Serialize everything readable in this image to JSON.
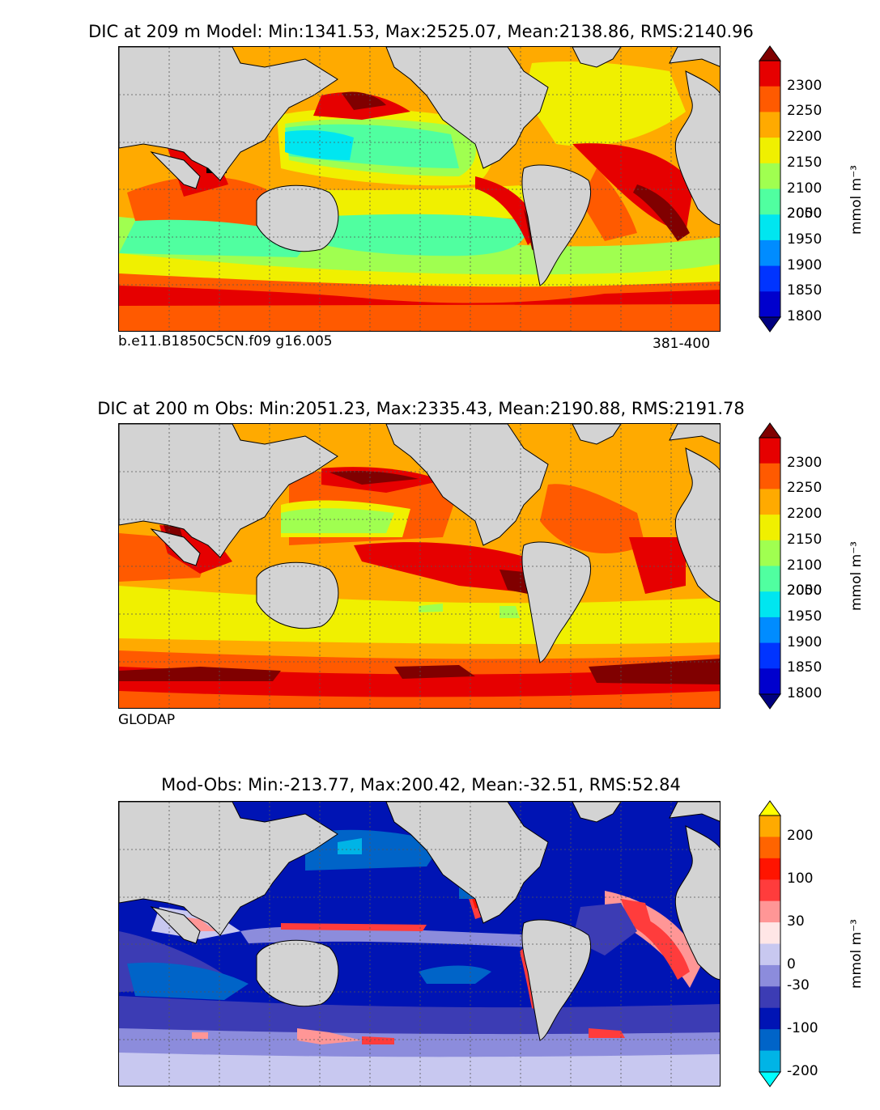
{
  "panels": [
    {
      "title": "DIC at 209 m Model: Min:1341.53, Max:2525.07, Mean:2138.86, RMS:2140.96",
      "left_note": "b.e11.B1850C5CN.f09 g16.005",
      "right_note": "381-400",
      "unit": "mmol m⁻³",
      "colors": [
        "#000080",
        "#0000cd",
        "#0034ff",
        "#008cff",
        "#00e6f0",
        "#50ffa0",
        "#a0ff50",
        "#f0f000",
        "#ffaa00",
        "#ff5a00",
        "#e60000",
        "#800000"
      ],
      "ticks": [
        "2300",
        "2250",
        "2200",
        "2150",
        "2100",
        "2050",
        "2000",
        "1950",
        "1900",
        "1850",
        "1800"
      ]
    },
    {
      "title": "DIC at 200 m Obs: Min:2051.23, Max:2335.43, Mean:2190.88, RMS:2191.78",
      "left_note": "GLODAP",
      "right_note": "",
      "unit": "mmol m⁻³",
      "colors": [
        "#000080",
        "#0000cd",
        "#0034ff",
        "#008cff",
        "#00e6f0",
        "#50ffa0",
        "#a0ff50",
        "#f0f000",
        "#ffaa00",
        "#ff5a00",
        "#e60000",
        "#800000"
      ],
      "ticks": [
        "2300",
        "2250",
        "2200",
        "2150",
        "2100",
        "2050",
        "2000",
        "1950",
        "1900",
        "1850",
        "1800"
      ]
    },
    {
      "title": "Mod-Obs: Min:-213.77, Max:200.42, Mean:-32.51, RMS:52.84",
      "left_note": "",
      "right_note": "",
      "unit": "mmol m⁻³",
      "colors": [
        "#00ffff",
        "#00b4e6",
        "#0064c8",
        "#0014b4",
        "#3c3cb4",
        "#8c8cdc",
        "#c8c8f0",
        "#ffe6e6",
        "#ff9696",
        "#ff3c3c",
        "#ff1400",
        "#ff6400",
        "#ffaa00",
        "#ffff00"
      ],
      "ticks": [
        "200",
        "100",
        "30",
        "0",
        "-30",
        "-100",
        "-200"
      ]
    }
  ],
  "chart_data": [
    {
      "type": "heatmap",
      "title": "DIC at 209 m Model: Min:1341.53, Max:2525.07, Mean:2138.86, RMS:2140.96",
      "variable": "DIC",
      "depth_m": 209,
      "source": "Model",
      "stats": {
        "min": 1341.53,
        "max": 2525.07,
        "mean": 2138.86,
        "rms": 2140.96
      },
      "colorbar_levels": [
        1800,
        1850,
        1900,
        1950,
        2000,
        2050,
        2100,
        2150,
        2200,
        2250,
        2300
      ],
      "colorbar_extend": "both",
      "colorbar_label": "mmol m⁻³",
      "annotation_left": "b.e11.B1850C5CN.f09 g16.005",
      "annotation_right": "381-400"
    },
    {
      "type": "heatmap",
      "title": "DIC at 200 m Obs: Min:2051.23, Max:2335.43, Mean:2190.88, RMS:2191.78",
      "variable": "DIC",
      "depth_m": 200,
      "source": "Obs",
      "stats": {
        "min": 2051.23,
        "max": 2335.43,
        "mean": 2190.88,
        "rms": 2191.78
      },
      "colorbar_levels": [
        1800,
        1850,
        1900,
        1950,
        2000,
        2050,
        2100,
        2150,
        2200,
        2250,
        2300
      ],
      "colorbar_extend": "both",
      "colorbar_label": "mmol m⁻³",
      "annotation_left": "GLODAP"
    },
    {
      "type": "heatmap",
      "title": "Mod-Obs: Min:-213.77, Max:200.42, Mean:-32.51, RMS:52.84",
      "variable": "DIC difference",
      "source": "Model minus Obs",
      "stats": {
        "min": -213.77,
        "max": 200.42,
        "mean": -32.51,
        "rms": 52.84
      },
      "colorbar_levels": [
        -200,
        -100,
        -30,
        0,
        30,
        100,
        200
      ],
      "colorbar_extend": "both",
      "colorbar_label": "mmol m⁻³"
    }
  ]
}
